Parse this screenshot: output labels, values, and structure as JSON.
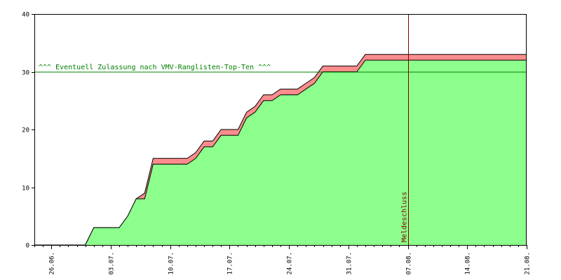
{
  "chart_data": {
    "type": "area",
    "title": "",
    "xlabel": "",
    "ylabel": "",
    "x_range": [
      "2015-06-24",
      "2015-08-21"
    ],
    "ylim": [
      0,
      40
    ],
    "grid": false,
    "legend": "none",
    "yticks": [
      {
        "value": 0,
        "label": "0"
      },
      {
        "value": 10,
        "label": "10"
      },
      {
        "value": 20,
        "label": "20"
      },
      {
        "value": 30,
        "label": "30"
      },
      {
        "value": 40,
        "label": "40"
      }
    ],
    "xticks": [
      {
        "date": "2015-06-26",
        "label": "26.06."
      },
      {
        "date": "2015-07-03",
        "label": "03.07."
      },
      {
        "date": "2015-07-10",
        "label": "10.07."
      },
      {
        "date": "2015-07-17",
        "label": "17.07."
      },
      {
        "date": "2015-07-24",
        "label": "24.07."
      },
      {
        "date": "2015-07-31",
        "label": "31.07."
      },
      {
        "date": "2015-08-07",
        "label": "07.08."
      },
      {
        "date": "2015-08-14",
        "label": "14.08."
      },
      {
        "date": "2015-08-21",
        "label": "21.08."
      }
    ],
    "series": [
      {
        "color": "#8cff8c",
        "points": [
          [
            "2015-06-24",
            0
          ],
          [
            "2015-06-30",
            0
          ],
          [
            "2015-07-01",
            3
          ],
          [
            "2015-07-02",
            3
          ],
          [
            "2015-07-03",
            3
          ],
          [
            "2015-07-04",
            3
          ],
          [
            "2015-07-05",
            5
          ],
          [
            "2015-07-06",
            8
          ],
          [
            "2015-07-07",
            8
          ],
          [
            "2015-07-08",
            14
          ],
          [
            "2015-07-09",
            14
          ],
          [
            "2015-07-10",
            14
          ],
          [
            "2015-07-11",
            14
          ],
          [
            "2015-07-12",
            14
          ],
          [
            "2015-07-13",
            15
          ],
          [
            "2015-07-14",
            17
          ],
          [
            "2015-07-15",
            17
          ],
          [
            "2015-07-16",
            19
          ],
          [
            "2015-07-17",
            19
          ],
          [
            "2015-07-18",
            19
          ],
          [
            "2015-07-19",
            22
          ],
          [
            "2015-07-20",
            23
          ],
          [
            "2015-07-21",
            25
          ],
          [
            "2015-07-22",
            25
          ],
          [
            "2015-07-23",
            26
          ],
          [
            "2015-07-24",
            26
          ],
          [
            "2015-07-25",
            26
          ],
          [
            "2015-07-26",
            27
          ],
          [
            "2015-07-27",
            28
          ],
          [
            "2015-07-28",
            30
          ],
          [
            "2015-07-29",
            30
          ],
          [
            "2015-07-30",
            30
          ],
          [
            "2015-07-31",
            30
          ],
          [
            "2015-08-01",
            30
          ],
          [
            "2015-08-02",
            32
          ],
          [
            "2015-08-21",
            32
          ]
        ]
      },
      {
        "color": "#ff8c8c",
        "points": [
          [
            "2015-06-24",
            0
          ],
          [
            "2015-06-30",
            0
          ],
          [
            "2015-07-01",
            3
          ],
          [
            "2015-07-02",
            3
          ],
          [
            "2015-07-03",
            3
          ],
          [
            "2015-07-04",
            3
          ],
          [
            "2015-07-05",
            5
          ],
          [
            "2015-07-06",
            8
          ],
          [
            "2015-07-07",
            9
          ],
          [
            "2015-07-08",
            15
          ],
          [
            "2015-07-09",
            15
          ],
          [
            "2015-07-10",
            15
          ],
          [
            "2015-07-11",
            15
          ],
          [
            "2015-07-12",
            15
          ],
          [
            "2015-07-13",
            16
          ],
          [
            "2015-07-14",
            18
          ],
          [
            "2015-07-15",
            18
          ],
          [
            "2015-07-16",
            20
          ],
          [
            "2015-07-17",
            20
          ],
          [
            "2015-07-18",
            20
          ],
          [
            "2015-07-19",
            23
          ],
          [
            "2015-07-20",
            24
          ],
          [
            "2015-07-21",
            26
          ],
          [
            "2015-07-22",
            26
          ],
          [
            "2015-07-23",
            27
          ],
          [
            "2015-07-24",
            27
          ],
          [
            "2015-07-25",
            27
          ],
          [
            "2015-07-26",
            28
          ],
          [
            "2015-07-27",
            29
          ],
          [
            "2015-07-28",
            31
          ],
          [
            "2015-07-29",
            31
          ],
          [
            "2015-07-30",
            31
          ],
          [
            "2015-07-31",
            31
          ],
          [
            "2015-08-01",
            31
          ],
          [
            "2015-08-02",
            33
          ],
          [
            "2015-08-21",
            33
          ]
        ]
      }
    ],
    "annotations": [
      {
        "kind": "hline",
        "y": 30,
        "color": "#008000",
        "label": "^^^ Eventuell Zulassung nach VMV-Ranglisten-Top-Ten ^^^"
      },
      {
        "kind": "vline",
        "x": "2015-08-07",
        "color": "#800000",
        "label": "Meldeschluss"
      }
    ]
  }
}
